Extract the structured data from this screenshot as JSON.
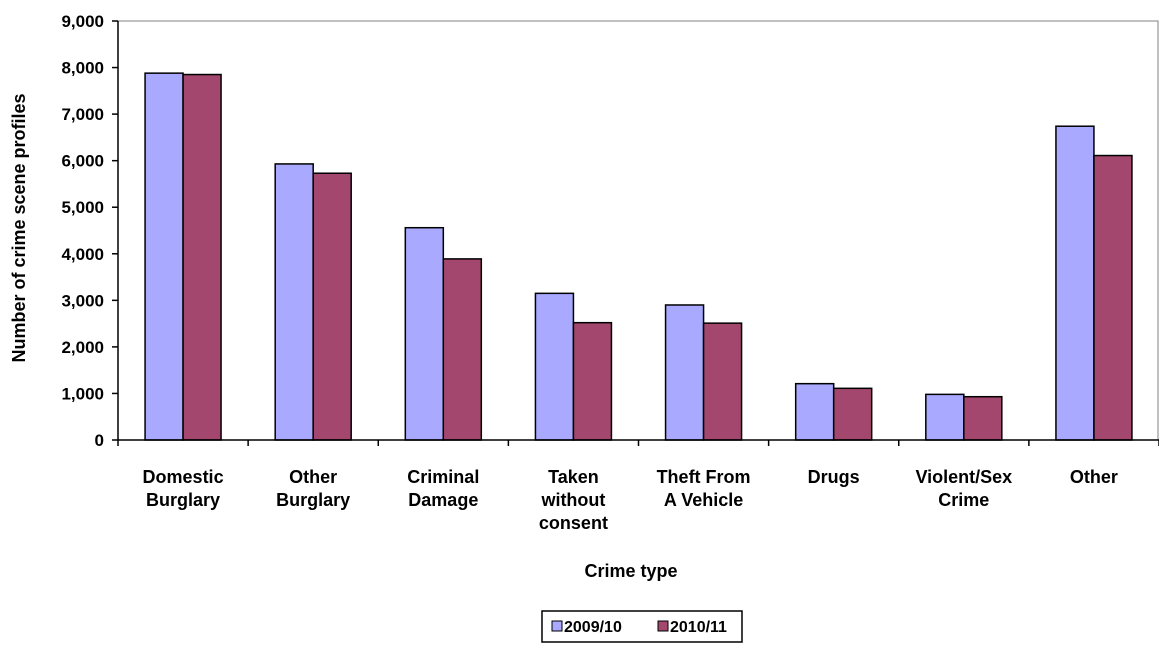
{
  "chart_data": {
    "type": "bar",
    "title": "",
    "xlabel": "Crime type",
    "ylabel": "Number of crime scene profiles",
    "ylim": [
      0,
      9000
    ],
    "yticks": [
      "0",
      "1,000",
      "2,000",
      "3,000",
      "4,000",
      "5,000",
      "6,000",
      "7,000",
      "8,000",
      "9,000"
    ],
    "categories": [
      [
        "Domestic",
        "Burglary"
      ],
      [
        "Other",
        "Burglary"
      ],
      [
        "Criminal",
        "Damage"
      ],
      [
        "Taken",
        "without",
        "consent"
      ],
      [
        "Theft From",
        "A Vehicle"
      ],
      [
        "Drugs"
      ],
      [
        "Violent/Sex",
        "Crime"
      ],
      [
        "Other"
      ]
    ],
    "series": [
      {
        "name": "2009/10",
        "color": "#a9a9ff",
        "values": [
          7880,
          5930,
          4560,
          3150,
          2900,
          1210,
          980,
          6740
        ]
      },
      {
        "name": "2010/11",
        "color": "#a4476f",
        "values": [
          7850,
          5730,
          3890,
          2520,
          2510,
          1110,
          930,
          6110
        ]
      }
    ],
    "grid": false,
    "legend": "bottom-center"
  }
}
